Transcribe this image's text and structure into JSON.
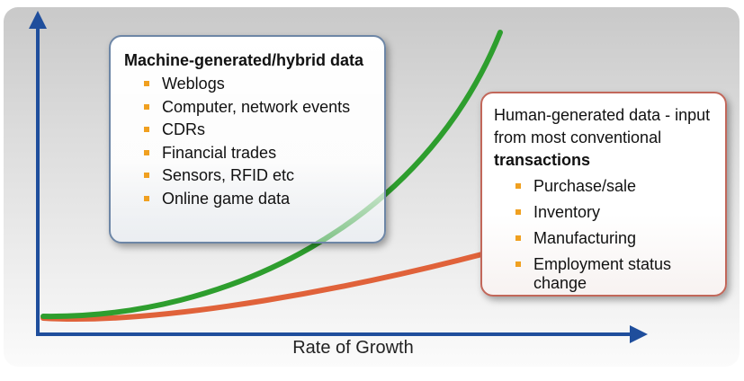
{
  "xaxis_label": "Rate of Growth",
  "machine_box": {
    "title": "Machine-generated/hybrid data",
    "items": [
      "Weblogs",
      "Computer, network events",
      "CDRs",
      "Financial trades",
      "Sensors, RFID etc",
      "Online game data"
    ]
  },
  "human_box": {
    "title_prefix": "Human-generated data - input from most conventional ",
    "title_bold": "transactions",
    "items": [
      "Purchase/sale",
      "Inventory",
      "Manufacturing",
      "Employment status change"
    ]
  },
  "colors": {
    "axis": "#1f4e9c",
    "machine_curve": "#2e9e2e",
    "human_curve": "#e0623a",
    "bullet": "#f0a020",
    "machine_border": "#6d86a6",
    "human_border": "#c2675a"
  }
}
